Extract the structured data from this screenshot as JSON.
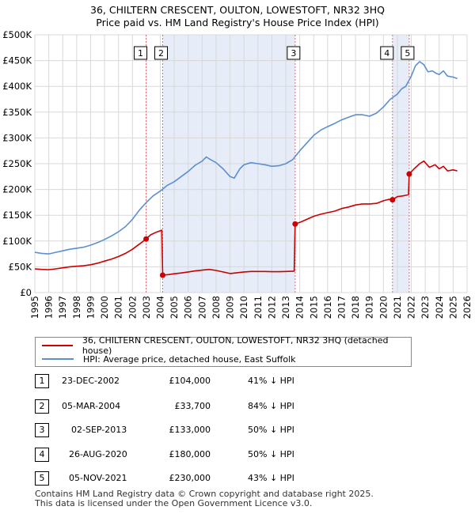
{
  "header": {
    "title_line1": "36, CHILTERN CRESCENT, OULTON, LOWESTOFT, NR32 3HQ",
    "title_line2": "Price paid vs. HM Land Registry's House Price Index (HPI)"
  },
  "legend": {
    "red_label": "36, CHILTERN CRESCENT, OULTON, LOWESTOFT, NR32 3HQ (detached house)",
    "blue_label": "HPI: Average price, detached house, East Suffolk"
  },
  "colors": {
    "price_line": "#cc0000",
    "hpi_line": "#5b8fd0",
    "shade": "#e6ecf8",
    "marker_line": "#e07070",
    "grid": "#d8d8d8"
  },
  "transactions": [
    {
      "num": "1",
      "date": "23-DEC-2002",
      "price": "£104,000",
      "hpi": "41% ↓ HPI"
    },
    {
      "num": "2",
      "date": "05-MAR-2004",
      "price": "£33,700",
      "hpi": "84% ↓ HPI"
    },
    {
      "num": "3",
      "date": "02-SEP-2013",
      "price": "£133,000",
      "hpi": "50% ↓ HPI"
    },
    {
      "num": "4",
      "date": "26-AUG-2020",
      "price": "£180,000",
      "hpi": "50% ↓ HPI"
    },
    {
      "num": "5",
      "date": "05-NOV-2021",
      "price": "£230,000",
      "hpi": "43% ↓ HPI"
    }
  ],
  "footer": {
    "line1": "Contains HM Land Registry data © Crown copyright and database right 2025.",
    "line2": "This data is licensed under the Open Government Licence v3.0."
  },
  "chart_data": {
    "type": "line",
    "title": "36, CHILTERN CRESCENT, OULTON, LOWESTOFT, NR32 3HQ — Price paid vs. HM Land Registry's House Price Index (HPI)",
    "xlabel": "",
    "ylabel": "",
    "xlim": [
      1995,
      2026
    ],
    "ylim": [
      0,
      500000
    ],
    "x_ticks": [
      "1995",
      "1996",
      "1997",
      "1998",
      "1999",
      "2000",
      "2001",
      "2002",
      "2003",
      "2004",
      "2005",
      "2006",
      "2007",
      "2008",
      "2009",
      "2010",
      "2011",
      "2012",
      "2013",
      "2014",
      "2015",
      "2016",
      "2017",
      "2018",
      "2019",
      "2020",
      "2021",
      "2022",
      "2023",
      "2024",
      "2025",
      "2026"
    ],
    "y_ticks": [
      {
        "value": 0,
        "label": "£0"
      },
      {
        "value": 50000,
        "label": "£50K"
      },
      {
        "value": 100000,
        "label": "£100K"
      },
      {
        "value": 150000,
        "label": "£150K"
      },
      {
        "value": 200000,
        "label": "£200K"
      },
      {
        "value": 250000,
        "label": "£250K"
      },
      {
        "value": 300000,
        "label": "£300K"
      },
      {
        "value": 350000,
        "label": "£350K"
      },
      {
        "value": 400000,
        "label": "£400K"
      },
      {
        "value": 450000,
        "label": "£450K"
      },
      {
        "value": 500000,
        "label": "£500K"
      }
    ],
    "shaded_ranges": [
      [
        2004.17,
        2013.67
      ],
      [
        2020.65,
        2021.85
      ]
    ],
    "sale_markers": [
      {
        "label": "1",
        "x": 2002.98,
        "y": 104000
      },
      {
        "label": "2",
        "x": 2004.17,
        "y": 33700
      },
      {
        "label": "3",
        "x": 2013.67,
        "y": 133000
      },
      {
        "label": "4",
        "x": 2020.65,
        "y": 180000
      },
      {
        "label": "5",
        "x": 2021.85,
        "y": 230000
      }
    ],
    "series": [
      {
        "name": "HPI: Average price, detached house, East Suffolk",
        "x": [
          1995,
          1995.5,
          1996,
          1996.5,
          1997,
          1997.5,
          1998,
          1998.5,
          1999,
          1999.5,
          2000,
          2000.5,
          2001,
          2001.5,
          2002,
          2002.5,
          2003,
          2003.5,
          2004,
          2004.5,
          2005,
          2005.5,
          2006,
          2006.5,
          2007,
          2007.3,
          2007.6,
          2008,
          2008.5,
          2009,
          2009.3,
          2009.7,
          2010,
          2010.5,
          2011,
          2011.5,
          2012,
          2012.5,
          2013,
          2013.5,
          2014,
          2014.5,
          2015,
          2015.5,
          2016,
          2016.5,
          2017,
          2017.5,
          2018,
          2018.5,
          2019,
          2019.5,
          2020,
          2020.5,
          2021,
          2021.3,
          2021.6,
          2022,
          2022.3,
          2022.6,
          2022.9,
          2023.2,
          2023.5,
          2023.8,
          2024,
          2024.3,
          2024.6,
          2025,
          2025.3
        ],
        "values": [
          78000,
          76000,
          75000,
          78000,
          81000,
          84000,
          86000,
          88000,
          92000,
          97000,
          103000,
          110000,
          118000,
          128000,
          142000,
          160000,
          175000,
          188000,
          197000,
          208000,
          215000,
          225000,
          235000,
          247000,
          255000,
          263000,
          258000,
          252000,
          240000,
          225000,
          222000,
          240000,
          248000,
          252000,
          250000,
          248000,
          245000,
          246000,
          250000,
          258000,
          275000,
          290000,
          305000,
          315000,
          322000,
          328000,
          335000,
          340000,
          345000,
          345000,
          342000,
          348000,
          360000,
          375000,
          385000,
          395000,
          400000,
          420000,
          440000,
          448000,
          442000,
          428000,
          430000,
          425000,
          423000,
          430000,
          420000,
          418000,
          415000
        ]
      },
      {
        "name": "36, CHILTERN CRESCENT, OULTON, LOWESTOFT, NR32 3HQ (detached house)",
        "x": [
          1995,
          1995.5,
          1996,
          1996.5,
          1997,
          1997.5,
          1998,
          1998.5,
          1999,
          1999.5,
          2000,
          2000.5,
          2001,
          2001.5,
          2002,
          2002.5,
          2002.98,
          2003.3,
          2003.7,
          2004.1,
          2004.17,
          2004.6,
          2005,
          2005.5,
          2006,
          2006.5,
          2007,
          2007.5,
          2008,
          2008.5,
          2009,
          2009.5,
          2010,
          2010.5,
          2011,
          2011.5,
          2012,
          2012.5,
          2013,
          2013.6,
          2013.67,
          2014,
          2014.5,
          2015,
          2015.5,
          2016,
          2016.5,
          2017,
          2017.5,
          2018,
          2018.5,
          2019,
          2019.5,
          2020,
          2020.4,
          2020.65,
          2021,
          2021.5,
          2021.8,
          2021.85,
          2022.2,
          2022.6,
          2022.9,
          2023.3,
          2023.7,
          2024,
          2024.3,
          2024.6,
          2025,
          2025.3
        ],
        "values": [
          46000,
          45000,
          44500,
          46000,
          48000,
          50000,
          51000,
          52000,
          54000,
          57000,
          61000,
          65000,
          70000,
          76000,
          84000,
          94000,
          104000,
          112000,
          117000,
          121000,
          33700,
          35000,
          36500,
          38000,
          40000,
          42000,
          43500,
          45000,
          43000,
          40000,
          37000,
          38500,
          40000,
          41000,
          41000,
          41000,
          40500,
          40500,
          41000,
          41500,
          133000,
          136000,
          142000,
          148000,
          152000,
          155000,
          158000,
          163000,
          166000,
          170000,
          172000,
          172000,
          173000,
          178000,
          181000,
          180000,
          186000,
          188000,
          190000,
          230000,
          240000,
          250000,
          255000,
          243000,
          248000,
          240000,
          245000,
          236000,
          238000,
          236000
        ]
      }
    ]
  }
}
